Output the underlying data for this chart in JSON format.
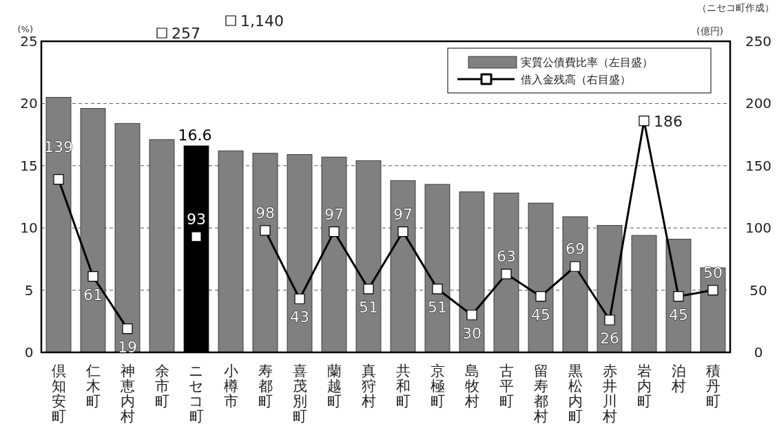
{
  "chart_data": {
    "type": "bar",
    "categories": [
      "倶知安町",
      "仁木町",
      "神恵内村",
      "余市町",
      "ニセコ町",
      "小樽市",
      "寿都町",
      "喜茂別町",
      "蘭越町",
      "真狩村",
      "共和町",
      "京極町",
      "島牧村",
      "古平町",
      "留寿都村",
      "黒松内町",
      "赤井川村",
      "岩内町",
      "泊村",
      "積丹町"
    ],
    "series": [
      {
        "name": "実質公債費比率（左目盛）",
        "color": "#808080",
        "colors": [
          "#808080",
          "#808080",
          "#808080",
          "#808080",
          "#000000",
          "#808080",
          "#808080",
          "#808080",
          "#808080",
          "#808080",
          "#808080",
          "#808080",
          "#808080",
          "#808080",
          "#808080",
          "#808080",
          "#808080",
          "#808080",
          "#808080",
          "#808080"
        ],
        "values": [
          20.5,
          19.6,
          18.4,
          17.1,
          16.6,
          16.2,
          16.0,
          15.9,
          15.7,
          15.4,
          13.8,
          13.5,
          12.9,
          12.8,
          12.0,
          10.9,
          10.2,
          9.4,
          9.1,
          6.8
        ],
        "value_labels": [
          null,
          null,
          null,
          null,
          "16.6",
          null,
          null,
          null,
          null,
          null,
          null,
          null,
          null,
          null,
          null,
          null,
          null,
          null,
          null,
          null
        ]
      },
      {
        "name": "借入金残高（右目盛）",
        "type": "line",
        "axis": "y2",
        "color": "#000000",
        "marker": "square",
        "line_style": "solid",
        "values": [
          139,
          61,
          19,
          null,
          93,
          null,
          98,
          43,
          97,
          51,
          97,
          51,
          30,
          63,
          45,
          69,
          26,
          186,
          45,
          50
        ],
        "value_labels": [
          "139",
          "61",
          "19",
          null,
          "93",
          null,
          "98",
          "43",
          "97",
          "51",
          "97",
          "51",
          "30",
          "63",
          "45",
          "69",
          "26",
          "186",
          "45",
          "50"
        ]
      }
    ],
    "ylabel": "(%)",
    "y2label": "(億円)",
    "ylim": [
      0,
      25
    ],
    "yticks": [
      0,
      5,
      10,
      15,
      20,
      25
    ],
    "y2lim": [
      0,
      250
    ],
    "y2ticks": [
      0,
      50,
      100,
      150,
      200,
      250
    ],
    "grid": "y",
    "legend": "top right",
    "annotations": [
      "（ニセコ町作成）",
      "257",
      "1,140"
    ]
  }
}
